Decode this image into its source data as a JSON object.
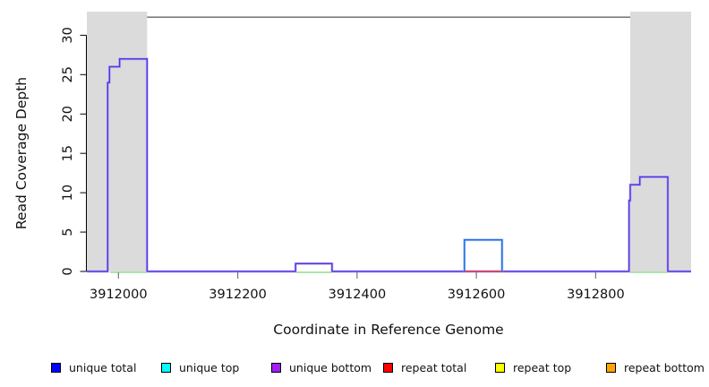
{
  "chart_data": {
    "type": "line",
    "subtype": "step-coverage",
    "title": "",
    "xlabel": "Coordinate in Reference Genome",
    "ylabel": "Read Coverage Depth",
    "xlim": [
      3911947,
      3912960
    ],
    "ylim": [
      0,
      33
    ],
    "x_ticks": [
      3912000,
      3912200,
      3912400,
      3912600,
      3912800
    ],
    "y_ticks": [
      0,
      5,
      10,
      15,
      20,
      25,
      30
    ],
    "grid": false,
    "legend_position": "bottom",
    "shaded_regions": [
      {
        "start": 3911947,
        "end": 3912048,
        "color": "#dbdbdb"
      },
      {
        "start": 3912858,
        "end": 3912960,
        "color": "#dbdbdb"
      }
    ],
    "hline": {
      "depth": 32.3,
      "start": 3912048,
      "end": 3912858,
      "color": "#7c7c7c"
    },
    "series": [
      {
        "name": "unique bottom",
        "color_core": "#5633e0",
        "color_halo": "#b7abf4",
        "baseline": true,
        "segments": [
          {
            "start": 3911982,
            "end": 3911985,
            "depth": 24
          },
          {
            "start": 3911985,
            "end": 3912002,
            "depth": 26
          },
          {
            "start": 3912002,
            "end": 3912048,
            "depth": 27
          },
          {
            "start": 3912297,
            "end": 3912358,
            "depth": 1
          },
          {
            "start": 3912856,
            "end": 3912858,
            "depth": 9
          },
          {
            "start": 3912858,
            "end": 3912874,
            "depth": 11
          },
          {
            "start": 3912874,
            "end": 3912921,
            "depth": 12
          }
        ]
      },
      {
        "name": "unique top",
        "color_core": "#1d6fe8",
        "color_halo": "#a4bdf5",
        "baseline": false,
        "segments": [
          {
            "start": 3912580,
            "end": 3912643,
            "depth": 4
          }
        ]
      }
    ],
    "baseline_marks": [
      {
        "name": "repeat-total-at-zero",
        "color": "#e73848",
        "offset": 0,
        "ranges": [
          [
            3912580,
            3912643
          ]
        ]
      },
      {
        "name": "strand-overlap-at-zero",
        "color": "#93dc93",
        "offset": 1,
        "ranges": [
          [
            3911986,
            3912048
          ],
          [
            3912297,
            3912358
          ],
          [
            3912858,
            3912921
          ]
        ]
      }
    ],
    "legend": [
      {
        "label": "unique total",
        "color": "#0000ff"
      },
      {
        "label": "unique top",
        "color": "#00ffff"
      },
      {
        "label": "unique bottom",
        "color": "#a020f0"
      },
      {
        "label": "repeat total",
        "color": "#ff0000"
      },
      {
        "label": "repeat top",
        "color": "#ffff00"
      },
      {
        "label": "repeat bottom",
        "color": "#ffa500"
      }
    ]
  }
}
